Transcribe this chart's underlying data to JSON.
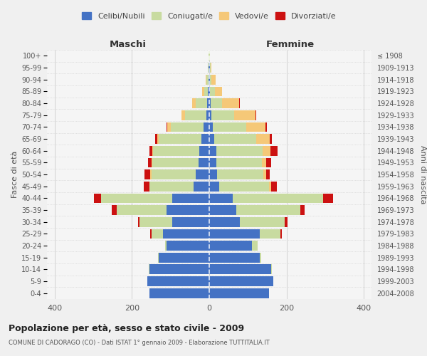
{
  "age_groups": [
    "0-4",
    "5-9",
    "10-14",
    "15-19",
    "20-24",
    "25-29",
    "30-34",
    "35-39",
    "40-44",
    "45-49",
    "50-54",
    "55-59",
    "60-64",
    "65-69",
    "70-74",
    "75-79",
    "80-84",
    "85-89",
    "90-94",
    "95-99",
    "100+"
  ],
  "birth_years": [
    "2004-2008",
    "1999-2003",
    "1994-1998",
    "1989-1993",
    "1984-1988",
    "1979-1983",
    "1974-1978",
    "1969-1973",
    "1964-1968",
    "1959-1963",
    "1954-1958",
    "1949-1953",
    "1944-1948",
    "1939-1943",
    "1934-1938",
    "1929-1933",
    "1924-1928",
    "1919-1923",
    "1914-1918",
    "1909-1913",
    "≤ 1908"
  ],
  "maschi": {
    "celibi": [
      155,
      160,
      155,
      130,
      110,
      120,
      95,
      110,
      95,
      40,
      35,
      28,
      25,
      20,
      15,
      8,
      5,
      3,
      2,
      1,
      0
    ],
    "coniugati": [
      0,
      0,
      1,
      2,
      5,
      30,
      85,
      130,
      185,
      115,
      115,
      120,
      120,
      110,
      85,
      55,
      30,
      10,
      5,
      2,
      1
    ],
    "vedovi": [
      0,
      0,
      0,
      0,
      0,
      0,
      0,
      0,
      0,
      0,
      2,
      2,
      2,
      5,
      8,
      8,
      10,
      5,
      2,
      0,
      0
    ],
    "divorziati": [
      0,
      0,
      0,
      0,
      0,
      2,
      5,
      12,
      18,
      15,
      15,
      8,
      8,
      5,
      2,
      0,
      0,
      0,
      0,
      0,
      0
    ]
  },
  "femmine": {
    "nubili": [
      155,
      165,
      160,
      130,
      110,
      130,
      80,
      70,
      60,
      25,
      20,
      18,
      18,
      12,
      10,
      5,
      3,
      2,
      1,
      1,
      0
    ],
    "coniugate": [
      0,
      1,
      2,
      5,
      15,
      55,
      115,
      165,
      235,
      130,
      120,
      118,
      120,
      110,
      85,
      60,
      30,
      12,
      5,
      2,
      1
    ],
    "vedove": [
      0,
      0,
      0,
      0,
      0,
      0,
      0,
      0,
      0,
      5,
      8,
      12,
      20,
      35,
      50,
      55,
      45,
      20,
      10,
      2,
      1
    ],
    "divorziate": [
      0,
      0,
      0,
      0,
      0,
      2,
      8,
      12,
      25,
      15,
      8,
      12,
      18,
      5,
      5,
      2,
      2,
      0,
      0,
      0,
      0
    ]
  },
  "colors": {
    "celibi": "#4472c4",
    "coniugati": "#c8dba0",
    "vedovi": "#f5c878",
    "divorziati": "#cc1111"
  },
  "xlim": 420,
  "title": "Popolazione per età, sesso e stato civile - 2009",
  "subtitle": "COMUNE DI CADORAGO (CO) - Dati ISTAT 1° gennaio 2009 - Elaborazione TUTTITALIA.IT",
  "xlabel_left": "Maschi",
  "xlabel_right": "Femmine",
  "ylabel_left": "Fasce di età",
  "ylabel_right": "Anni di nascita",
  "legend_labels": [
    "Celibi/Nubili",
    "Coniugati/e",
    "Vedovi/e",
    "Divorziati/e"
  ],
  "bg_color": "#f0f0f0",
  "plot_bg_color": "#f5f5f5",
  "grid_color": "#cccccc"
}
